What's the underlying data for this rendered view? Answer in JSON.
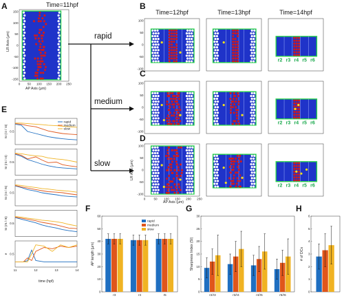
{
  "panels": {
    "A": {
      "letter": "A",
      "title": "Time=11hpf",
      "xlabel": "AP Axis (μm)",
      "ylabel": "LR Axis (μm)"
    },
    "B": {
      "letter": "B",
      "titles": [
        "Time=12hpf",
        "Time=13hpf",
        "Time=14hpf"
      ]
    },
    "C": {
      "letter": "C"
    },
    "D": {
      "letter": "D",
      "xlabel": "AP Axis (μm)",
      "ylabel": "LR Axis (μm)"
    },
    "E": {
      "letter": "E",
      "xlabel": "time (hpf)",
      "ylabels": [
        "SI (r2 / r3)",
        "SI (r3 / r4)",
        "SI (r4 / r5)",
        "SI (r5 / r6)",
        "e"
      ]
    },
    "F": {
      "letter": "F",
      "ylabel": "AP length (μm)"
    },
    "G": {
      "letter": "G",
      "ylabel": "Sharpness Index (SI)"
    },
    "H": {
      "letter": "H",
      "ylabel": "# of DCs"
    }
  },
  "branches": [
    "rapid",
    "medium",
    "slow"
  ],
  "rhombomere_labels": [
    "r2",
    "r3",
    "r4",
    "r5",
    "r6"
  ],
  "map_axes": {
    "y_ticks_A": [
      "150",
      "100",
      "50",
      "0",
      "-50",
      "-100",
      "-150"
    ],
    "x_ticks_A": [
      "0",
      "50",
      "100",
      "150",
      "200",
      "250"
    ],
    "y_ticks_small": [
      "100",
      "50",
      "0",
      "-50",
      "-100"
    ],
    "x_ticks_small": [
      "0",
      "50",
      "100",
      "150",
      "200",
      "250"
    ]
  },
  "legend": [
    "rapid",
    "medium",
    "slow"
  ],
  "colors": {
    "rapid": "#1f6fc1",
    "medium": "#e0561b",
    "slow": "#f0b323",
    "blue_cell": "#1f33c9",
    "red_cell": "#d21a1a",
    "border": "#27d24a"
  },
  "chart_data": [
    {
      "type": "line",
      "panel": "E",
      "x_ticks": [
        "11",
        "12",
        "13",
        "14"
      ],
      "xlim": [
        11,
        14
      ],
      "subplots": [
        {
          "ylabel": "SI (r2 / r3)",
          "series": [
            {
              "name": "rapid",
              "x": [
                11,
                11.3,
                11.6,
                12,
                12.3,
                12.6,
                13,
                13.3,
                13.6,
                14
              ],
              "y": [
                0.78,
                0.74,
                0.5,
                0.42,
                0.36,
                0.3,
                0.25,
                0.22,
                0.2,
                0.18
              ]
            },
            {
              "name": "medium",
              "x": [
                11,
                11.3,
                11.6,
                12,
                12.3,
                12.6,
                13,
                13.3,
                13.6,
                14
              ],
              "y": [
                0.8,
                0.78,
                0.72,
                0.68,
                0.6,
                0.52,
                0.46,
                0.42,
                0.4,
                0.38
              ]
            },
            {
              "name": "slow",
              "x": [
                11,
                11.3,
                11.6,
                12,
                12.3,
                12.6,
                13,
                13.3,
                13.6,
                14
              ],
              "y": [
                0.82,
                0.82,
                0.8,
                0.78,
                0.76,
                0.74,
                0.72,
                0.7,
                0.68,
                0.66
              ]
            }
          ]
        },
        {
          "ylabel": "SI (r3 / r4)",
          "series": [
            {
              "name": "rapid",
              "x": [
                11,
                11.3,
                11.6,
                12,
                12.3,
                12.6,
                13,
                13.3,
                13.6,
                14
              ],
              "y": [
                0.8,
                0.72,
                0.6,
                0.5,
                0.42,
                0.36,
                0.3,
                0.28,
                0.26,
                0.24
              ]
            },
            {
              "name": "medium",
              "x": [
                11,
                11.3,
                11.6,
                12,
                12.3,
                12.6,
                13,
                13.3,
                13.6,
                14
              ],
              "y": [
                0.82,
                0.76,
                0.62,
                0.7,
                0.58,
                0.48,
                0.5,
                0.4,
                0.36,
                0.32
              ]
            },
            {
              "name": "slow",
              "x": [
                11,
                11.3,
                11.6,
                12,
                12.3,
                12.6,
                13,
                13.3,
                13.6,
                14
              ],
              "y": [
                0.84,
                0.82,
                0.78,
                0.74,
                0.72,
                0.66,
                0.62,
                0.6,
                0.56,
                0.5
              ]
            }
          ]
        },
        {
          "ylabel": "SI (r4 / r5)",
          "series": [
            {
              "name": "rapid",
              "x": [
                11,
                11.3,
                11.6,
                12,
                12.3,
                12.6,
                13,
                13.3,
                13.6,
                14
              ],
              "y": [
                0.76,
                0.7,
                0.62,
                0.56,
                0.5,
                0.46,
                0.42,
                0.38,
                0.36,
                0.34
              ]
            },
            {
              "name": "medium",
              "x": [
                11,
                11.3,
                11.6,
                12,
                12.3,
                12.6,
                13,
                13.3,
                13.6,
                14
              ],
              "y": [
                0.78,
                0.72,
                0.68,
                0.62,
                0.58,
                0.54,
                0.52,
                0.5,
                0.46,
                0.42
              ]
            },
            {
              "name": "slow",
              "x": [
                11,
                11.3,
                11.6,
                12,
                12.3,
                12.6,
                13,
                13.3,
                13.6,
                14
              ],
              "y": [
                0.8,
                0.78,
                0.74,
                0.7,
                0.66,
                0.64,
                0.6,
                0.58,
                0.56,
                0.52
              ]
            }
          ]
        },
        {
          "ylabel": "SI (r5 / r6)",
          "series": [
            {
              "name": "rapid",
              "x": [
                11,
                11.3,
                11.6,
                12,
                12.3,
                12.6,
                13,
                13.3,
                13.6,
                14
              ],
              "y": [
                0.72,
                0.66,
                0.6,
                0.52,
                0.44,
                0.38,
                0.32,
                0.26,
                0.22,
                0.18
              ]
            },
            {
              "name": "medium",
              "x": [
                11,
                11.3,
                11.6,
                12,
                12.3,
                12.6,
                13,
                13.3,
                13.6,
                14
              ],
              "y": [
                0.74,
                0.7,
                0.66,
                0.6,
                0.54,
                0.5,
                0.44,
                0.38,
                0.32,
                0.3
              ]
            },
            {
              "name": "slow",
              "x": [
                11,
                11.3,
                11.6,
                12,
                12.3,
                12.6,
                13,
                13.3,
                13.6,
                14
              ],
              "y": [
                0.76,
                0.74,
                0.7,
                0.66,
                0.62,
                0.6,
                0.56,
                0.52,
                0.46,
                0.4
              ]
            }
          ]
        },
        {
          "ylabel": "e",
          "series": [
            {
              "name": "rapid",
              "x": [
                11,
                11.4,
                11.6,
                11.8,
                12,
                12.4,
                12.8,
                13.2,
                13.6,
                14
              ],
              "y": [
                0.2,
                0.2,
                0.25,
                0.65,
                0.25,
                0.2,
                0.2,
                0.2,
                0.2,
                0.2
              ]
            },
            {
              "name": "medium",
              "x": [
                11,
                11.4,
                11.6,
                11.8,
                12,
                12.4,
                12.8,
                13.2,
                13.6,
                14
              ],
              "y": [
                0.2,
                0.2,
                0.35,
                0.25,
                0.6,
                0.75,
                0.7,
                0.8,
                0.75,
                0.8
              ]
            },
            {
              "name": "slow",
              "x": [
                11,
                11.4,
                11.6,
                11.8,
                12,
                12.4,
                12.8,
                13.2,
                13.6,
                14
              ],
              "y": [
                0.2,
                0.2,
                0.2,
                0.5,
                0.85,
                0.8,
                0.6,
                0.85,
                0.75,
                0.85
              ]
            }
          ]
        }
      ]
    },
    {
      "type": "bar",
      "panel": "F",
      "ylabel": "AP length (μm)",
      "categories": [
        "r3",
        "r4",
        "r5"
      ],
      "ylim": [
        0,
        60
      ],
      "y_ticks": [
        "0",
        "10",
        "20",
        "30",
        "40",
        "50",
        "60"
      ],
      "series": [
        {
          "name": "rapid",
          "values": [
            42,
            41,
            42
          ],
          "err": [
            4,
            4,
            4
          ]
        },
        {
          "name": "medium",
          "values": [
            42,
            41,
            42
          ],
          "err": [
            4,
            4,
            4
          ]
        },
        {
          "name": "slow",
          "values": [
            42,
            41,
            42
          ],
          "err": [
            4,
            4,
            4
          ]
        }
      ]
    },
    {
      "type": "bar",
      "panel": "G",
      "ylabel": "Sharpness Index (SI)",
      "categories": [
        "r2/r3",
        "r3/r4",
        "r4/r5",
        "r5/r6"
      ],
      "ylim": [
        0,
        30
      ],
      "y_ticks": [
        "0",
        "5",
        "10",
        "15",
        "20",
        "25",
        "30"
      ],
      "series": [
        {
          "name": "rapid",
          "values": [
            9.5,
            11,
            10.5,
            9
          ],
          "err": [
            4,
            4,
            4,
            4
          ]
        },
        {
          "name": "medium",
          "values": [
            12,
            14,
            13,
            11.5
          ],
          "err": [
            5,
            6,
            5,
            5
          ]
        },
        {
          "name": "slow",
          "values": [
            14.5,
            17,
            16,
            14
          ],
          "err": [
            8,
            7,
            7,
            7
          ]
        }
      ]
    },
    {
      "type": "bar",
      "panel": "H",
      "ylabel": "# of DCs",
      "categories": [
        ""
      ],
      "ylim": [
        0,
        6
      ],
      "y_ticks": [
        "0",
        "1",
        "2",
        "3",
        "4",
        "5",
        "6"
      ],
      "series": [
        {
          "name": "rapid",
          "values": [
            2.8
          ],
          "err": [
            1
          ]
        },
        {
          "name": "medium",
          "values": [
            3.3
          ],
          "err": [
            1.3
          ]
        },
        {
          "name": "slow",
          "values": [
            3.7
          ],
          "err": [
            1.5
          ]
        }
      ]
    }
  ]
}
